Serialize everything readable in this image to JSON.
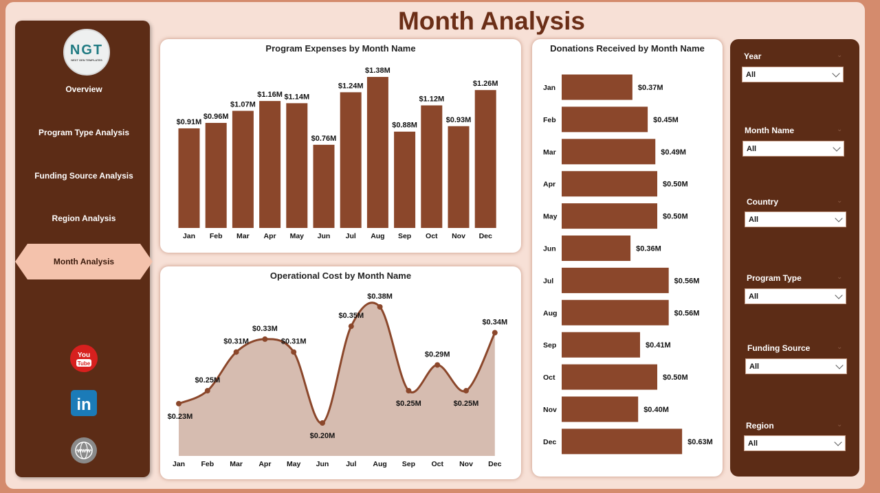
{
  "header": {
    "title": "Month Analysis"
  },
  "logo": {
    "text": "NGT",
    "tagline": "NEXT GEN TEMPLATES"
  },
  "nav": [
    {
      "label": "Overview"
    },
    {
      "label": "Program Type Analysis"
    },
    {
      "label": "Funding Source Analysis"
    },
    {
      "label": "Region Analysis"
    },
    {
      "label": "Month Analysis",
      "active": true
    }
  ],
  "social": [
    {
      "icon": "youtube-icon",
      "text": "You Tube"
    },
    {
      "icon": "linkedin-icon",
      "text": "in"
    },
    {
      "icon": "globe-icon",
      "text": "WWW"
    }
  ],
  "colors": {
    "bar": "#8b472b",
    "line": "#8b472b",
    "area": "#d6bcb0",
    "sidebar": "#5c2c16",
    "active": "#f4c2ac"
  },
  "chart_data": [
    {
      "type": "bar",
      "title": "Program Expenses by Month Name",
      "categories": [
        "Jan",
        "Feb",
        "Mar",
        "Apr",
        "May",
        "Jun",
        "Jul",
        "Aug",
        "Sep",
        "Oct",
        "Nov",
        "Dec"
      ],
      "values": [
        0.91,
        0.96,
        1.07,
        1.16,
        1.14,
        0.76,
        1.24,
        1.38,
        0.88,
        1.12,
        0.93,
        1.26
      ],
      "labels": [
        "$0.91M",
        "$0.96M",
        "$1.07M",
        "$1.16M",
        "$1.14M",
        "$0.76M",
        "$1.24M",
        "$1.38M",
        "$0.88M",
        "$1.12M",
        "$0.93M",
        "$1.26M"
      ],
      "unit": "$M"
    },
    {
      "type": "area",
      "title": "Operational Cost by Month Name",
      "categories": [
        "Jan",
        "Feb",
        "Mar",
        "Apr",
        "May",
        "Jun",
        "Jul",
        "Aug",
        "Sep",
        "Oct",
        "Nov",
        "Dec"
      ],
      "values": [
        0.23,
        0.25,
        0.31,
        0.33,
        0.31,
        0.2,
        0.35,
        0.38,
        0.25,
        0.29,
        0.25,
        0.34
      ],
      "labels": [
        "$0.23M",
        "$0.25M",
        "$0.31M",
        "$0.33M",
        "$0.31M",
        "$0.20M",
        "$0.35M",
        "$0.38M",
        "$0.25M",
        "$0.29M",
        "$0.25M",
        "$0.34M"
      ],
      "unit": "$M"
    },
    {
      "type": "bar",
      "orientation": "horizontal",
      "title": "Donations Received by Month Name",
      "categories": [
        "Jan",
        "Feb",
        "Mar",
        "Apr",
        "May",
        "Jun",
        "Jul",
        "Aug",
        "Sep",
        "Oct",
        "Nov",
        "Dec"
      ],
      "values": [
        0.37,
        0.45,
        0.49,
        0.5,
        0.5,
        0.36,
        0.56,
        0.56,
        0.41,
        0.5,
        0.4,
        0.63
      ],
      "labels": [
        "$0.37M",
        "$0.45M",
        "$0.49M",
        "$0.50M",
        "$0.50M",
        "$0.36M",
        "$0.56M",
        "$0.56M",
        "$0.41M",
        "$0.50M",
        "$0.40M",
        "$0.63M"
      ],
      "unit": "$M"
    }
  ],
  "filters": [
    {
      "label": "Year",
      "value": "All"
    },
    {
      "label": "Month Name",
      "value": "All"
    },
    {
      "label": "Country",
      "value": "All"
    },
    {
      "label": "Program Type",
      "value": "All"
    },
    {
      "label": "Funding Source",
      "value": "All"
    },
    {
      "label": "Region",
      "value": "All"
    }
  ]
}
